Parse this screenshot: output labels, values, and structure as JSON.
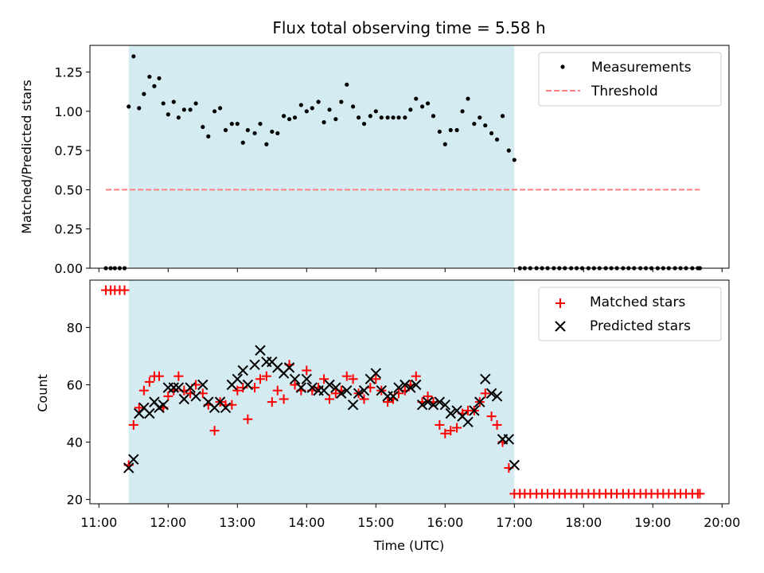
{
  "chart_data": [
    {
      "type": "scatter",
      "title": "Flux total observing time = 5.58 h",
      "ylabel": "Matched/Predicted stars",
      "xlim": [
        10.87,
        20.1
      ],
      "ylim": [
        0.0,
        1.42
      ],
      "yticks": [
        "0.00",
        "0.25",
        "0.50",
        "0.75",
        "1.00",
        "1.25"
      ],
      "yticks_values": [
        0.0,
        0.25,
        0.5,
        0.75,
        1.0,
        1.25
      ],
      "grid": false,
      "legend_position": "top-right",
      "shaded_region": {
        "x_start": 11.43,
        "x_end": 17.0,
        "color": "#d4ebf2"
      },
      "series": [
        {
          "name": "Measurements",
          "marker": "dot",
          "color": "#000000",
          "x": [
            11.1,
            11.17,
            11.23,
            11.3,
            11.37,
            11.43,
            11.5,
            11.58,
            11.65,
            11.73,
            11.8,
            11.87,
            11.93,
            12.0,
            12.08,
            12.15,
            12.23,
            12.32,
            12.4,
            12.5,
            12.58,
            12.67,
            12.75,
            12.83,
            12.92,
            13.0,
            13.08,
            13.15,
            13.25,
            13.33,
            13.42,
            13.5,
            13.58,
            13.67,
            13.75,
            13.83,
            13.92,
            14.0,
            14.08,
            14.17,
            14.25,
            14.33,
            14.42,
            14.5,
            14.58,
            14.67,
            14.75,
            14.83,
            14.92,
            15.0,
            15.08,
            15.17,
            15.25,
            15.33,
            15.42,
            15.5,
            15.58,
            15.67,
            15.75,
            15.83,
            15.92,
            16.0,
            16.08,
            16.17,
            16.25,
            16.33,
            16.42,
            16.5,
            16.58,
            16.67,
            16.75,
            16.83,
            16.92,
            17.0,
            17.08,
            17.15,
            17.23,
            17.32,
            17.4,
            17.48,
            17.57,
            17.65,
            17.73,
            17.82,
            17.9,
            17.98,
            18.07,
            18.15,
            18.23,
            18.32,
            18.4,
            18.48,
            18.57,
            18.65,
            18.73,
            18.82,
            18.9,
            18.98,
            19.07,
            19.15,
            19.23,
            19.32,
            19.4,
            19.48,
            19.57,
            19.65,
            19.68
          ],
          "y": [
            0,
            0,
            0,
            0,
            0,
            1.03,
            1.35,
            1.02,
            1.11,
            1.22,
            1.16,
            1.21,
            1.05,
            0.98,
            1.06,
            0.96,
            1.01,
            1.01,
            1.05,
            0.9,
            0.84,
            1.0,
            1.02,
            0.88,
            0.92,
            0.92,
            0.8,
            0.88,
            0.86,
            0.92,
            0.79,
            0.87,
            0.86,
            0.97,
            0.95,
            0.96,
            1.04,
            1.0,
            1.02,
            1.06,
            0.93,
            1.01,
            0.95,
            1.06,
            1.17,
            1.03,
            0.96,
            0.92,
            0.97,
            1.0,
            0.96,
            0.96,
            0.96,
            0.96,
            0.96,
            1.01,
            1.08,
            1.03,
            1.05,
            0.97,
            0.87,
            0.79,
            0.88,
            0.88,
            1.0,
            1.08,
            0.92,
            0.96,
            0.91,
            0.86,
            0.82,
            0.97,
            0.75,
            0.69,
            0,
            0,
            0,
            0,
            0,
            0,
            0,
            0,
            0,
            0,
            0,
            0,
            0,
            0,
            0,
            0,
            0,
            0,
            0,
            0,
            0,
            0,
            0,
            0,
            0,
            0,
            0,
            0,
            0,
            0,
            0,
            0,
            0
          ]
        },
        {
          "name": "Threshold",
          "marker": "dashed-line",
          "color": "#ff7f7f",
          "x": [
            11.1,
            19.68
          ],
          "y": [
            0.5,
            0.5
          ]
        }
      ]
    },
    {
      "type": "scatter",
      "xlabel": "Time (UTC)",
      "ylabel": "Count",
      "xlim": [
        10.87,
        20.1
      ],
      "ylim": [
        18.5,
        96.5
      ],
      "xticks": [
        "11:00",
        "12:00",
        "13:00",
        "14:00",
        "15:00",
        "16:00",
        "17:00",
        "18:00",
        "19:00",
        "20:00"
      ],
      "xticks_values": [
        11,
        12,
        13,
        14,
        15,
        16,
        17,
        18,
        19,
        20
      ],
      "yticks": [
        "20",
        "40",
        "60",
        "80"
      ],
      "yticks_values": [
        20,
        40,
        60,
        80
      ],
      "grid": false,
      "legend_position": "top-right",
      "shaded_region": {
        "x_start": 11.43,
        "x_end": 17.0,
        "color": "#d4ebf2"
      },
      "series": [
        {
          "name": "Matched stars",
          "marker": "plus",
          "color": "#ff0000",
          "x": [
            11.1,
            11.17,
            11.23,
            11.3,
            11.37,
            11.43,
            11.5,
            11.58,
            11.65,
            11.73,
            11.8,
            11.87,
            11.93,
            12.0,
            12.08,
            12.15,
            12.23,
            12.32,
            12.4,
            12.5,
            12.58,
            12.67,
            12.75,
            12.83,
            12.92,
            13.0,
            13.08,
            13.15,
            13.25,
            13.33,
            13.42,
            13.5,
            13.58,
            13.67,
            13.75,
            13.83,
            13.92,
            14.0,
            14.08,
            14.17,
            14.25,
            14.33,
            14.42,
            14.5,
            14.58,
            14.67,
            14.75,
            14.83,
            14.92,
            15.0,
            15.08,
            15.17,
            15.25,
            15.33,
            15.42,
            15.5,
            15.58,
            15.67,
            15.75,
            15.83,
            15.92,
            16.0,
            16.08,
            16.17,
            16.25,
            16.33,
            16.42,
            16.5,
            16.58,
            16.67,
            16.75,
            16.83,
            16.92,
            17.0,
            17.08,
            17.15,
            17.23,
            17.32,
            17.4,
            17.48,
            17.57,
            17.65,
            17.73,
            17.82,
            17.9,
            17.98,
            18.07,
            18.15,
            18.23,
            18.32,
            18.4,
            18.48,
            18.57,
            18.65,
            18.73,
            18.82,
            18.9,
            18.98,
            19.07,
            19.15,
            19.23,
            19.32,
            19.4,
            19.48,
            19.57,
            19.65,
            19.68
          ],
          "y": [
            93,
            93,
            93,
            93,
            93,
            32,
            46,
            52,
            58,
            61,
            63,
            63,
            52,
            56,
            58,
            63,
            58,
            57,
            60,
            57,
            53,
            44,
            54,
            53,
            53,
            58,
            59,
            48,
            59,
            62,
            63,
            54,
            58,
            55,
            67,
            60,
            58,
            65,
            58,
            59,
            62,
            55,
            57,
            58,
            63,
            62,
            57,
            55,
            59,
            62,
            58,
            54,
            55,
            57,
            58,
            60,
            63,
            54,
            56,
            54,
            46,
            43,
            44,
            45,
            50,
            51,
            51,
            54,
            57,
            49,
            46,
            40,
            31,
            22,
            22,
            22,
            22,
            22,
            22,
            22,
            22,
            22,
            22,
            22,
            22,
            22,
            22,
            22,
            22,
            22,
            22,
            22,
            22,
            22,
            22,
            22,
            22,
            22,
            22,
            22,
            22,
            22,
            22,
            22,
            22,
            22,
            22
          ]
        },
        {
          "name": "Predicted stars",
          "marker": "x",
          "color": "#000000",
          "x": [
            11.43,
            11.5,
            11.58,
            11.65,
            11.73,
            11.8,
            11.87,
            11.93,
            12.0,
            12.08,
            12.15,
            12.23,
            12.32,
            12.4,
            12.5,
            12.58,
            12.67,
            12.75,
            12.83,
            12.92,
            13.0,
            13.08,
            13.15,
            13.25,
            13.33,
            13.42,
            13.5,
            13.58,
            13.67,
            13.75,
            13.83,
            13.92,
            14.0,
            14.08,
            14.17,
            14.25,
            14.33,
            14.42,
            14.5,
            14.58,
            14.67,
            14.75,
            14.83,
            14.92,
            15.0,
            15.08,
            15.17,
            15.25,
            15.33,
            15.42,
            15.5,
            15.58,
            15.67,
            15.75,
            15.83,
            15.92,
            16.0,
            16.08,
            16.17,
            16.25,
            16.33,
            16.42,
            16.5,
            16.58,
            16.67,
            16.75,
            16.83,
            16.92,
            17.0
          ],
          "y": [
            31,
            34,
            50,
            52,
            50,
            54,
            52,
            53,
            59,
            59,
            59,
            55,
            59,
            56,
            60,
            54,
            52,
            54,
            52,
            60,
            62,
            65,
            60,
            67,
            72,
            68,
            68,
            66,
            64,
            66,
            62,
            59,
            62,
            59,
            58,
            58,
            60,
            59,
            57,
            58,
            53,
            57,
            58,
            62,
            64,
            58,
            56,
            56,
            59,
            60,
            59,
            60,
            53,
            54,
            53,
            54,
            53,
            50,
            51,
            49,
            47,
            51,
            54,
            62,
            57,
            56,
            41,
            41,
            32
          ]
        }
      ]
    }
  ]
}
